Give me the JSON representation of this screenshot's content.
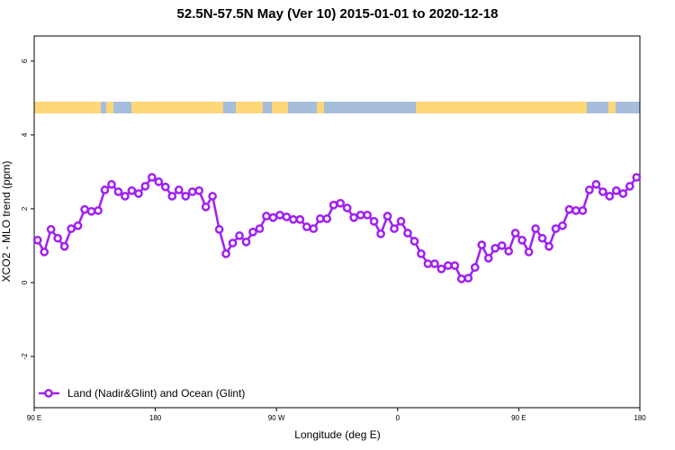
{
  "chart_data": {
    "type": "line",
    "title": "52.5N-57.5N May (Ver 10)   2015-01-01 to 2020-12-18",
    "xlabel": "Longitude (deg E)",
    "ylabel": "XCO2 - MLO trend (ppm)",
    "x": [
      92.5,
      97.5,
      102.5,
      107.5,
      112.5,
      117.5,
      122.5,
      127.5,
      132.5,
      137.5,
      142.5,
      147.5,
      152.5,
      157.5,
      162.5,
      167.5,
      172.5,
      177.5,
      182.5,
      187.5,
      192.5,
      197.5,
      202.5,
      207.5,
      212.5,
      217.5,
      222.5,
      227.5,
      232.5,
      237.5,
      242.5,
      247.5,
      252.5,
      257.5,
      262.5,
      267.5,
      272.5,
      277.5,
      282.5,
      287.5,
      292.5,
      297.5,
      302.5,
      307.5,
      312.5,
      317.5,
      322.5,
      327.5,
      332.5,
      337.5,
      342.5,
      347.5,
      352.5,
      357.5,
      362.5,
      367.5,
      372.5,
      377.5,
      382.5,
      387.5,
      392.5,
      397.5,
      402.5,
      407.5,
      412.5,
      417.5,
      422.5,
      427.5,
      432.5,
      437.5,
      442.5,
      447.5,
      452.5,
      457.5,
      462.5,
      467.5,
      472.5,
      477.5,
      482.5,
      487.5,
      492.5,
      497.5,
      502.5,
      507.5,
      512.5,
      517.5,
      522.5,
      527.5,
      532.5,
      537.5
    ],
    "series": [
      {
        "name": "Land (Nadir&Glint) and Ocean (Glint)",
        "color": "#a020f0",
        "values": [
          1.15,
          0.83,
          1.44,
          1.2,
          0.98,
          1.46,
          1.54,
          1.98,
          1.93,
          1.95,
          2.51,
          2.66,
          2.46,
          2.34,
          2.49,
          2.41,
          2.61,
          2.85,
          2.73,
          2.59,
          2.34,
          2.51,
          2.34,
          2.46,
          2.49,
          2.05,
          2.34,
          1.44,
          0.78,
          1.07,
          1.27,
          1.1,
          1.37,
          1.46,
          1.8,
          1.76,
          1.83,
          1.78,
          1.71,
          1.71,
          1.51,
          1.46,
          1.73,
          1.73,
          2.1,
          2.15,
          2.02,
          1.76,
          1.83,
          1.83,
          1.66,
          1.32,
          1.8,
          1.46,
          1.66,
          1.34,
          1.12,
          0.78,
          0.51,
          0.51,
          0.37,
          0.46,
          0.46,
          0.1,
          0.12,
          0.41,
          1.02,
          0.66,
          0.93,
          1.0,
          0.85,
          1.34,
          1.15,
          0.83,
          1.46,
          1.2,
          0.98,
          1.46,
          1.54,
          1.98,
          1.95,
          1.95,
          2.51,
          2.66,
          2.46,
          2.34,
          2.49,
          2.41,
          2.61,
          2.85
        ]
      }
    ],
    "xlim": [
      90,
      540
    ],
    "xticks": [
      {
        "value": 90,
        "label": "90 E"
      },
      180,
      {
        "value": 270,
        "label": "90 W"
      },
      {
        "value": 360,
        "label": "0"
      },
      {
        "value": 450,
        "label": "90 E"
      },
      {
        "value": 540,
        "label": "180"
      }
    ],
    "ylim": [
      -3.39,
      6.68
    ],
    "yticks": [
      -2,
      0,
      2,
      4,
      6
    ],
    "legend": "bottom-left"
  }
}
